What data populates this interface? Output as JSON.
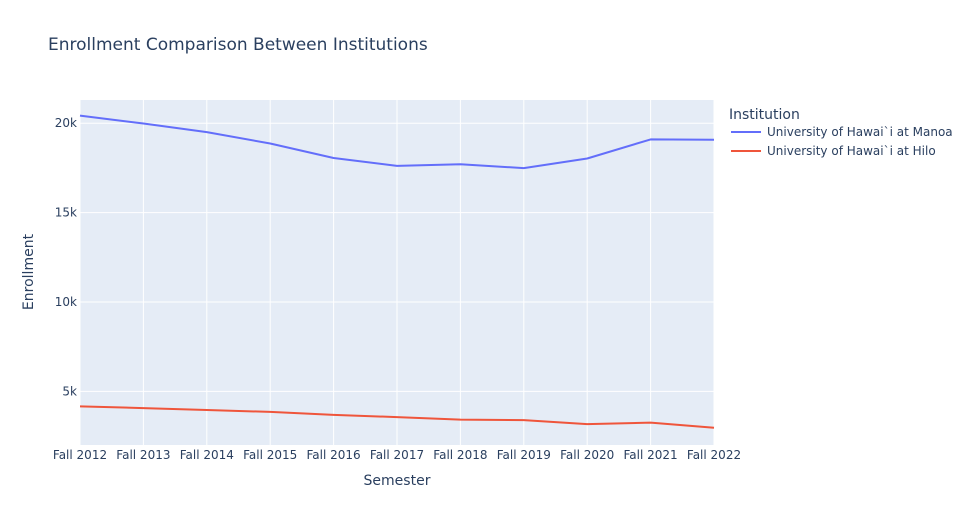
{
  "chart_data": {
    "type": "line",
    "title": "Enrollment Comparison Between Institutions",
    "xlabel": "Semester",
    "ylabel": "Enrollment",
    "categories": [
      "Fall 2012",
      "Fall 2013",
      "Fall 2014",
      "Fall 2015",
      "Fall 2016",
      "Fall 2017",
      "Fall 2018",
      "Fall 2019",
      "Fall 2020",
      "Fall 2021",
      "Fall 2022"
    ],
    "ylim": [
      2000,
      21300
    ],
    "yticks": [
      {
        "value": 5000,
        "label": "5k"
      },
      {
        "value": 10000,
        "label": "10k"
      },
      {
        "value": 15000,
        "label": "15k"
      },
      {
        "value": 20000,
        "label": "20k"
      }
    ],
    "grid": true,
    "legend": {
      "title": "Institution",
      "placement": "top-right, outside plot"
    },
    "series": [
      {
        "name": "University of Hawai`i at Manoa",
        "color": "#636efa",
        "values": [
          20429,
          19985,
          19507,
          18865,
          18056,
          17612,
          17710,
          17490,
          18025,
          19098,
          19074
        ]
      },
      {
        "name": "University of Hawai`i at Hilo",
        "color": "#ef553b",
        "values": [
          4157,
          4064,
          3957,
          3852,
          3684,
          3563,
          3423,
          3394,
          3171,
          3255,
          2969
        ]
      }
    ]
  }
}
